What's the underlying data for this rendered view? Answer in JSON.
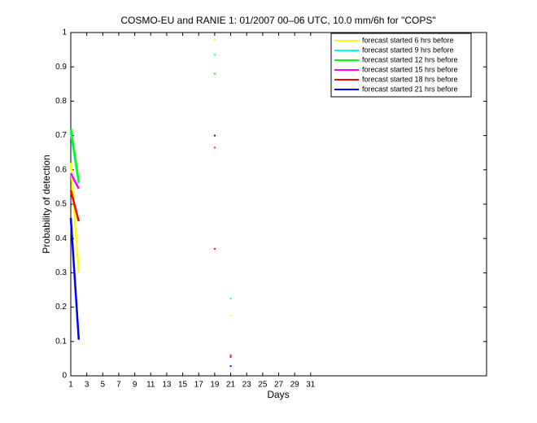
{
  "chart_data": {
    "type": "line",
    "title": "COSMO-EU and RANIE 1: 01/2007 00–06 UTC, 10.0 mm/6h for \"COPS\"",
    "x_label": "Days",
    "y_label": "Probability of detection",
    "x": [
      1,
      2,
      3,
      4,
      5,
      6,
      7,
      8,
      9,
      10,
      11,
      12,
      13,
      14,
      15,
      16,
      17,
      18,
      19,
      20,
      21
    ],
    "series": [
      {
        "name": "forecast started 6 hrs before",
        "color": "#ffff00",
        "values": [
          0.62,
          0.3,
          null,
          null,
          null,
          null,
          null,
          null,
          null,
          null,
          null,
          null,
          null,
          null,
          null,
          null,
          null,
          null,
          0.98,
          null,
          0.175
        ]
      },
      {
        "name": "forecast started 9 hrs before",
        "color": "#00ffff",
        "values": [
          0.71,
          0.56,
          null,
          null,
          null,
          null,
          null,
          null,
          null,
          null,
          null,
          null,
          null,
          null,
          null,
          null,
          null,
          null,
          0.935,
          null,
          0.225
        ]
      },
      {
        "name": "forecast started 12 hrs before",
        "color": "#00ff00",
        "values": [
          0.72,
          0.565,
          null,
          null,
          null,
          null,
          null,
          null,
          null,
          null,
          null,
          null,
          null,
          null,
          null,
          null,
          null,
          null,
          0.88,
          null,
          0.06
        ]
      },
      {
        "name": "forecast started 15 hrs before",
        "color": "#ff00ff",
        "values": [
          0.59,
          0.545,
          null,
          null,
          null,
          null,
          null,
          null,
          null,
          null,
          null,
          null,
          null,
          null,
          null,
          null,
          null,
          null,
          0.665,
          null,
          0.06
        ]
      },
      {
        "name": "forecast started 18 hrs before",
        "color": "#ff0000",
        "values": [
          0.54,
          0.45,
          null,
          null,
          null,
          null,
          null,
          null,
          null,
          null,
          null,
          null,
          null,
          null,
          null,
          null,
          null,
          null,
          0.37,
          null,
          0.055
        ]
      },
      {
        "name": "forecast started 21 hrs before",
        "color": "#0000ff",
        "values": [
          0.46,
          0.105,
          null,
          null,
          null,
          null,
          null,
          null,
          null,
          null,
          null,
          null,
          null,
          null,
          null,
          null,
          null,
          null,
          0.7,
          null,
          0.028
        ]
      }
    ],
    "xlim": [
      1,
      53
    ],
    "xticks": [
      1,
      3,
      5,
      7,
      9,
      11,
      13,
      15,
      17,
      19,
      21,
      23,
      25,
      27,
      29,
      31
    ],
    "ylim": [
      0,
      1
    ],
    "yticks": [
      0,
      0.1,
      0.2,
      0.3,
      0.4,
      0.5,
      0.6,
      0.7,
      0.8,
      0.9,
      1
    ],
    "legend_position": "upper right"
  }
}
